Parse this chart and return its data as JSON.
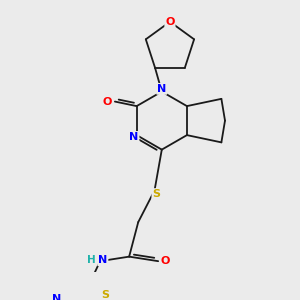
{
  "bg_color": "#ebebeb",
  "bond_color": "#1a1a1a",
  "atom_colors": {
    "O": "#ff0000",
    "N": "#0000ff",
    "S": "#ccaa00",
    "H": "#20b2aa",
    "C": "#1a1a1a"
  }
}
